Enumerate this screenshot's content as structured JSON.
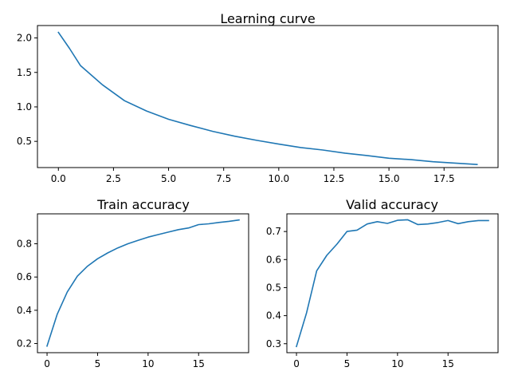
{
  "colors": {
    "series": "#1f77b4"
  },
  "chart_data": [
    {
      "type": "line",
      "title": "Learning curve",
      "xlabel": "",
      "ylabel": "",
      "xlim": [
        -0.95,
        19.95
      ],
      "ylim": [
        0.12,
        2.18
      ],
      "xticks": [
        0,
        2.5,
        5,
        7.5,
        10,
        12.5,
        15,
        17.5
      ],
      "xtick_labels": [
        "0.0",
        "2.5",
        "5.0",
        "7.5",
        "10.0",
        "12.5",
        "15.0",
        "17.5"
      ],
      "yticks": [
        0.5,
        1.0,
        1.5,
        2.0
      ],
      "ytick_labels": [
        "0.5",
        "1.0",
        "1.5",
        "2.0"
      ],
      "grid": false,
      "series": [
        {
          "x": [
            0,
            0.5,
            1,
            2,
            3,
            4,
            5,
            6,
            7,
            8,
            9,
            10,
            11,
            12,
            13,
            14,
            15,
            16,
            17,
            18,
            19
          ],
          "values": [
            2.08,
            1.85,
            1.6,
            1.32,
            1.09,
            0.94,
            0.82,
            0.73,
            0.645,
            0.575,
            0.515,
            0.46,
            0.41,
            0.375,
            0.33,
            0.295,
            0.255,
            0.235,
            0.205,
            0.185,
            0.165
          ]
        }
      ]
    },
    {
      "type": "line",
      "title": "Train accuracy",
      "xlabel": "",
      "ylabel": "",
      "xlim": [
        -0.95,
        19.95
      ],
      "ylim": [
        0.145,
        0.98
      ],
      "xticks": [
        0,
        5,
        10,
        15
      ],
      "xtick_labels": [
        "0",
        "5",
        "10",
        "15"
      ],
      "yticks": [
        0.2,
        0.4,
        0.6,
        0.8
      ],
      "ytick_labels": [
        "0.2",
        "0.4",
        "0.6",
        "0.8"
      ],
      "grid": false,
      "series": [
        {
          "x": [
            0,
            1,
            2,
            3,
            4,
            5,
            6,
            7,
            8,
            9,
            10,
            11,
            12,
            13,
            14,
            15,
            16,
            17,
            18,
            19
          ],
          "values": [
            0.185,
            0.375,
            0.51,
            0.605,
            0.665,
            0.71,
            0.745,
            0.775,
            0.8,
            0.82,
            0.84,
            0.855,
            0.87,
            0.885,
            0.895,
            0.915,
            0.92,
            0.928,
            0.935,
            0.943
          ]
        }
      ]
    },
    {
      "type": "line",
      "title": "Valid accuracy",
      "xlabel": "",
      "ylabel": "",
      "xlim": [
        -0.95,
        19.95
      ],
      "ylim": [
        0.268,
        0.763
      ],
      "xticks": [
        0,
        5,
        10,
        15
      ],
      "xtick_labels": [
        "0",
        "5",
        "10",
        "15"
      ],
      "yticks": [
        0.3,
        0.4,
        0.5,
        0.6,
        0.7
      ],
      "ytick_labels": [
        "0.3",
        "0.4",
        "0.5",
        "0.6",
        "0.7"
      ],
      "grid": false,
      "series": [
        {
          "x": [
            0,
            1,
            2,
            3,
            4,
            5,
            6,
            7,
            8,
            9,
            10,
            11,
            12,
            13,
            14,
            15,
            16,
            17,
            18,
            19
          ],
          "values": [
            0.29,
            0.41,
            0.56,
            0.615,
            0.655,
            0.7,
            0.705,
            0.727,
            0.735,
            0.729,
            0.74,
            0.742,
            0.725,
            0.727,
            0.732,
            0.739,
            0.728,
            0.735,
            0.739,
            0.739
          ]
        }
      ]
    }
  ]
}
